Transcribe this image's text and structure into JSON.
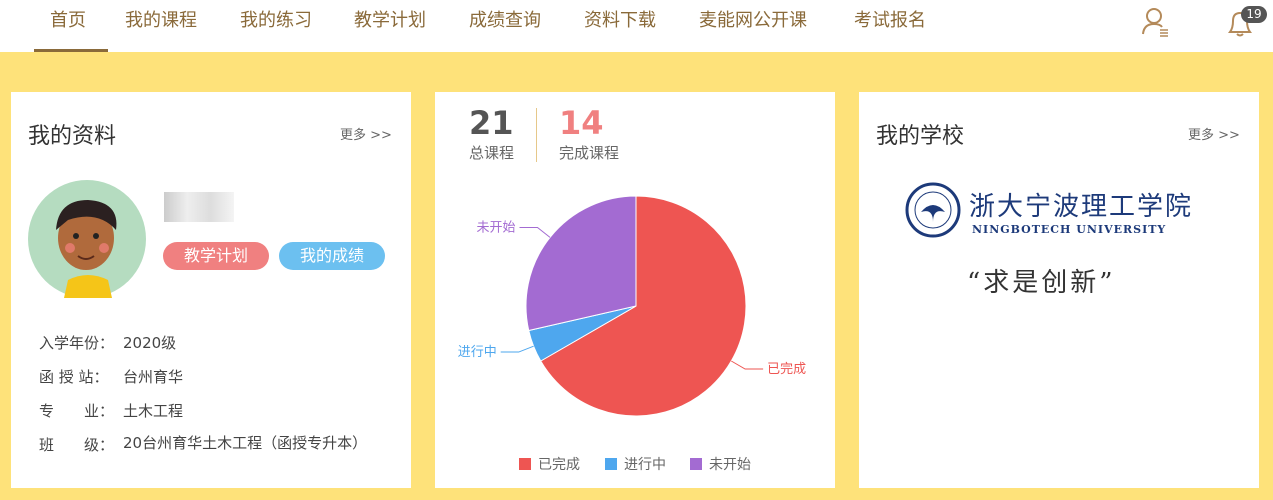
{
  "nav": {
    "items": [
      "首页",
      "我的课程",
      "我的练习",
      "教学计划",
      "成绩查询",
      "资料下载",
      "麦能网公开课",
      "考试报名"
    ],
    "badge": "19"
  },
  "profile": {
    "title": "我的资料",
    "more": "更多 >>",
    "buttons": [
      "教学计划",
      "我的成绩"
    ],
    "info": [
      [
        "入学年份：",
        "2020级"
      ],
      [
        "函 授 站：",
        "台州育华"
      ],
      [
        "专　　业：",
        "土木工程"
      ],
      [
        "班　　级：",
        "20台州育华土木工程（函授专升本）"
      ]
    ]
  },
  "stats": {
    "total": {
      "value": 21,
      "label": "总课程"
    },
    "done": {
      "value": 14,
      "label": "完成课程"
    }
  },
  "chart_data": {
    "type": "pie",
    "categories": [
      "已完成",
      "进行中",
      "未开始"
    ],
    "values": [
      14,
      1,
      6
    ],
    "colors": [
      "#ee5552",
      "#4ea7ee",
      "#a36bd2"
    ]
  },
  "school": {
    "title": "我的学校",
    "more": "更多 >>",
    "name_cn": "浙大宁波理工学院",
    "name_en": "NINGBOTECH UNIVERSITY",
    "motto": "“求是创新”"
  }
}
